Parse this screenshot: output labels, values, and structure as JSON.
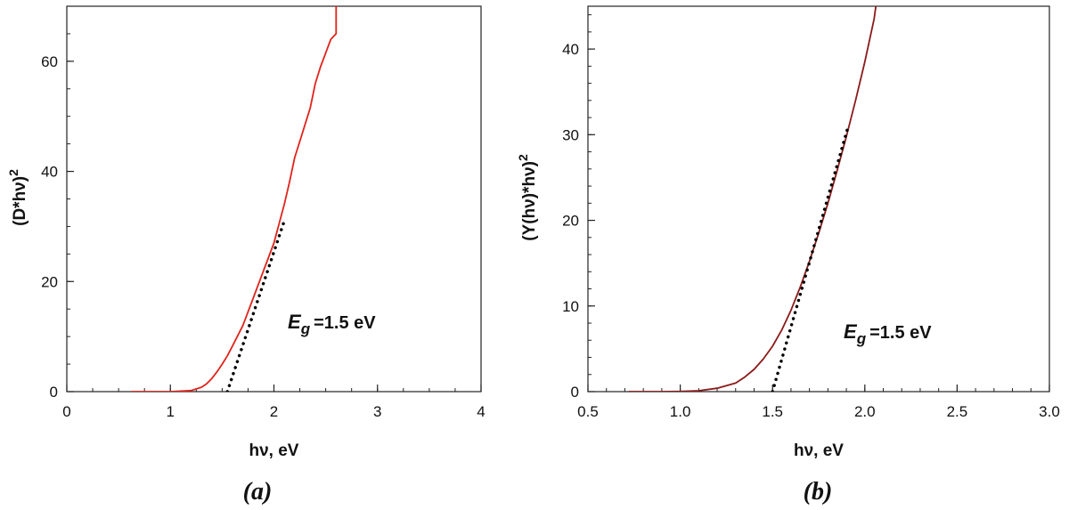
{
  "chart_data": [
    {
      "type": "line",
      "panel_label": "(a)",
      "xlabel": "hν, eV",
      "ylabel": "(D*hν)",
      "ylabel_sup": "2",
      "xlim": [
        0,
        4
      ],
      "ylim": [
        0,
        70
      ],
      "xticks": [
        0,
        1,
        2,
        3,
        4
      ],
      "xtick_labels": [
        "0",
        "1",
        "2",
        "3",
        "4"
      ],
      "yticks": [
        0,
        20,
        40,
        60
      ],
      "ytick_labels": [
        "0",
        "20",
        "40",
        "60"
      ],
      "xminor_step": 0.25,
      "yminor_step": 5,
      "grid": false,
      "annotation": {
        "symbol": "E",
        "subscript": "g",
        "text": "=1.5 eV",
        "x": 2.15,
        "y": 12
      },
      "series": [
        {
          "color": "#e0231b",
          "style": "solid",
          "x": [
            0.62,
            0.8,
            1.0,
            1.1,
            1.2,
            1.3,
            1.35,
            1.4,
            1.45,
            1.5,
            1.55,
            1.6,
            1.7,
            1.8,
            1.9,
            2.0,
            2.05,
            2.1,
            2.15,
            2.2,
            2.25,
            2.3,
            2.35,
            2.4,
            2.45,
            2.5,
            2.55,
            2.6,
            2.6
          ],
          "y": [
            0,
            0,
            0,
            0.1,
            0.2,
            0.8,
            1.4,
            2.4,
            3.6,
            5.0,
            6.5,
            8.3,
            12.0,
            17.0,
            22.0,
            27.0,
            30.5,
            34.0,
            38.0,
            42.5,
            45.5,
            48.5,
            51.5,
            56.0,
            59.0,
            61.5,
            64.0,
            65.0,
            70.0
          ]
        },
        {
          "color": "#000000",
          "style": "dotted",
          "x": [
            1.55,
            2.1
          ],
          "y": [
            0,
            31
          ]
        }
      ]
    },
    {
      "type": "line",
      "panel_label": "(b)",
      "xlabel": "hν, eV",
      "ylabel": "(Y(hν)*hν)",
      "ylabel_sup": "2",
      "xlim": [
        0.5,
        3.0
      ],
      "ylim": [
        0,
        45
      ],
      "xticks": [
        0.5,
        1.0,
        1.5,
        2.0,
        2.5,
        3.0
      ],
      "xtick_labels": [
        "0.5",
        "1.0",
        "1.5",
        "2.0",
        "2.5",
        "3.0"
      ],
      "yticks": [
        0,
        10,
        20,
        30,
        40
      ],
      "ytick_labels": [
        "0",
        "10",
        "20",
        "30",
        "40"
      ],
      "xminor_step": 0.1,
      "yminor_step": 2,
      "grid": false,
      "annotation": {
        "symbol": "E",
        "subscript": "g",
        "text": "=1.5 eV",
        "x": 1.9,
        "y": 6.5
      },
      "series": [
        {
          "color": "#8b1a1a",
          "style": "solid",
          "x": [
            0.72,
            0.9,
            1.0,
            1.1,
            1.2,
            1.3,
            1.35,
            1.4,
            1.45,
            1.5,
            1.55,
            1.6,
            1.65,
            1.7,
            1.75,
            1.8,
            1.85,
            1.9,
            1.95,
            2.0,
            2.05,
            2.06
          ],
          "y": [
            0,
            0,
            0.02,
            0.1,
            0.4,
            1.0,
            1.7,
            2.6,
            3.8,
            5.3,
            7.2,
            9.5,
            12.2,
            15.2,
            18.5,
            22.0,
            25.8,
            29.8,
            34.0,
            38.5,
            43.5,
            45.0
          ]
        },
        {
          "color": "#000000",
          "style": "dotted",
          "x": [
            1.5,
            1.91
          ],
          "y": [
            0,
            31
          ]
        }
      ]
    }
  ]
}
